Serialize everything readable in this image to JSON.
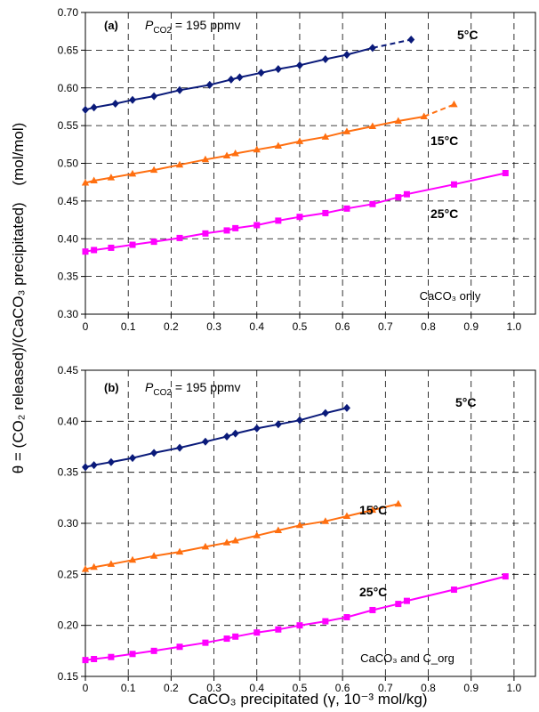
{
  "y_axis_title": "θ = (CO₂ released)/(CaCO₃ precipitated)",
  "y_axis_unit": "(mol/mol)",
  "x_axis_title": "CaCO₃ precipitated (γ, 10⁻³ mol/kg)",
  "chart_data": [
    {
      "type": "line",
      "panel_label": "(a)",
      "pco2_text": "= 195 ppmv",
      "annotation": "CaCO₃ only",
      "xlim": [
        0,
        1.05
      ],
      "ylim": [
        0.3,
        0.7
      ],
      "x_ticks": [
        "0",
        "0.1",
        "0.2",
        "0.3",
        "0.4",
        "0.5",
        "0.6",
        "0.7",
        "0.8",
        "0.9",
        "1.0"
      ],
      "y_ticks": [
        "0.30",
        "0.35",
        "0.40",
        "0.45",
        "0.50",
        "0.55",
        "0.60",
        "0.65",
        "0.70"
      ],
      "grid": true,
      "series": [
        {
          "name": "5°C",
          "color": "#0a1a7a",
          "marker": "diamond",
          "x": [
            0,
            0.02,
            0.07,
            0.11,
            0.16,
            0.22,
            0.29,
            0.34,
            0.36,
            0.41,
            0.45,
            0.5,
            0.56,
            0.61,
            0.67
          ],
          "y": [
            0.571,
            0.574,
            0.579,
            0.584,
            0.589,
            0.597,
            0.604,
            0.611,
            0.614,
            0.62,
            0.625,
            0.63,
            0.638,
            0.644,
            0.653
          ],
          "dashed_end": [
            0.76,
            0.664
          ]
        },
        {
          "name": "15°C",
          "color": "#ff6f10",
          "marker": "triangle",
          "x": [
            0,
            0.02,
            0.06,
            0.11,
            0.16,
            0.22,
            0.28,
            0.33,
            0.35,
            0.4,
            0.45,
            0.5,
            0.56,
            0.61,
            0.67,
            0.73,
            0.79
          ],
          "y": [
            0.474,
            0.477,
            0.481,
            0.486,
            0.491,
            0.498,
            0.505,
            0.51,
            0.513,
            0.518,
            0.523,
            0.529,
            0.535,
            0.542,
            0.549,
            0.556,
            0.562
          ],
          "dashed_end": [
            0.86,
            0.578
          ]
        },
        {
          "name": "25°C",
          "color": "#ff00ff",
          "marker": "square",
          "x": [
            0,
            0.02,
            0.06,
            0.11,
            0.16,
            0.22,
            0.28,
            0.33,
            0.35,
            0.4,
            0.45,
            0.5,
            0.56,
            0.61,
            0.67,
            0.73,
            0.75,
            0.86,
            0.98
          ],
          "y": [
            0.383,
            0.385,
            0.388,
            0.392,
            0.396,
            0.401,
            0.407,
            0.411,
            0.414,
            0.418,
            0.424,
            0.429,
            0.434,
            0.44,
            0.446,
            0.455,
            0.459,
            0.472,
            0.487
          ]
        }
      ]
    },
    {
      "type": "line",
      "panel_label": "(b)",
      "pco2_text": "= 195 ppmv",
      "annotation": "CaCO₃ and C_org",
      "xlim": [
        0,
        1.05
      ],
      "ylim": [
        0.15,
        0.45
      ],
      "x_ticks": [
        "0",
        "0.1",
        "0.2",
        "0.3",
        "0.4",
        "0.5",
        "0.6",
        "0.7",
        "0.8",
        "0.9",
        "1.0"
      ],
      "y_ticks": [
        "0.15",
        "0.20",
        "0.25",
        "0.30",
        "0.35",
        "0.40",
        "0.45"
      ],
      "grid": true,
      "series": [
        {
          "name": "5°C",
          "color": "#0a1a7a",
          "marker": "diamond",
          "x": [
            0,
            0.02,
            0.06,
            0.11,
            0.16,
            0.22,
            0.28,
            0.33,
            0.35,
            0.4,
            0.45,
            0.5,
            0.56,
            0.61
          ],
          "y": [
            0.355,
            0.357,
            0.36,
            0.364,
            0.369,
            0.374,
            0.38,
            0.385,
            0.388,
            0.393,
            0.397,
            0.401,
            0.408,
            0.413
          ]
        },
        {
          "name": "15°C",
          "color": "#ff6f10",
          "marker": "triangle",
          "x": [
            0,
            0.02,
            0.06,
            0.11,
            0.16,
            0.22,
            0.28,
            0.33,
            0.35,
            0.4,
            0.45,
            0.5,
            0.56,
            0.61,
            0.67,
            0.73
          ],
          "y": [
            0.255,
            0.257,
            0.26,
            0.264,
            0.268,
            0.272,
            0.277,
            0.281,
            0.283,
            0.288,
            0.293,
            0.298,
            0.302,
            0.307,
            0.313,
            0.319
          ]
        },
        {
          "name": "25°C",
          "color": "#ff00ff",
          "marker": "square",
          "x": [
            0,
            0.02,
            0.06,
            0.11,
            0.16,
            0.22,
            0.28,
            0.33,
            0.35,
            0.4,
            0.45,
            0.5,
            0.56,
            0.61,
            0.67,
            0.73,
            0.75,
            0.86,
            0.98
          ],
          "y": [
            0.166,
            0.167,
            0.169,
            0.172,
            0.175,
            0.179,
            0.183,
            0.187,
            0.189,
            0.193,
            0.196,
            0.2,
            0.204,
            0.208,
            0.215,
            0.221,
            0.224,
            0.235,
            0.248
          ]
        }
      ]
    }
  ]
}
